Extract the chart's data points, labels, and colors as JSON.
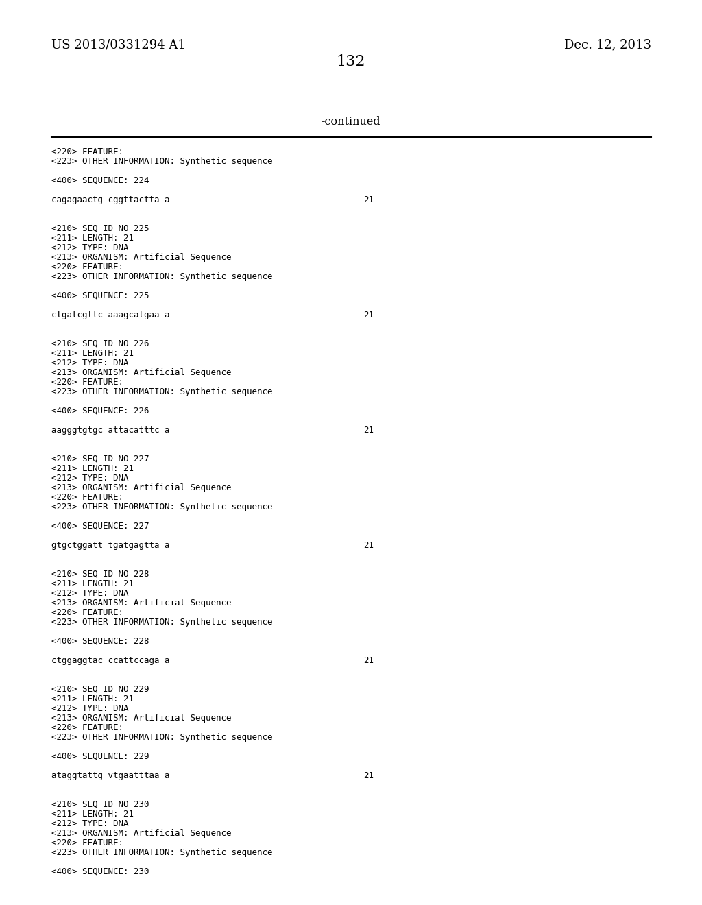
{
  "bg_color": "#ffffff",
  "header_left": "US 2013/0331294 A1",
  "header_right": "Dec. 12, 2013",
  "page_number": "132",
  "continued_label": "-continued",
  "content": [
    {
      "type": "text",
      "text": "<220> FEATURE:"
    },
    {
      "type": "text",
      "text": "<223> OTHER INFORMATION: Synthetic sequence"
    },
    {
      "type": "blank"
    },
    {
      "type": "text",
      "text": "<400> SEQUENCE: 224"
    },
    {
      "type": "blank"
    },
    {
      "type": "seq",
      "text": "cagagaactg cggttactta a",
      "num": "21"
    },
    {
      "type": "blank"
    },
    {
      "type": "blank"
    },
    {
      "type": "text",
      "text": "<210> SEQ ID NO 225"
    },
    {
      "type": "text",
      "text": "<211> LENGTH: 21"
    },
    {
      "type": "text",
      "text": "<212> TYPE: DNA"
    },
    {
      "type": "text",
      "text": "<213> ORGANISM: Artificial Sequence"
    },
    {
      "type": "text",
      "text": "<220> FEATURE:"
    },
    {
      "type": "text",
      "text": "<223> OTHER INFORMATION: Synthetic sequence"
    },
    {
      "type": "blank"
    },
    {
      "type": "text",
      "text": "<400> SEQUENCE: 225"
    },
    {
      "type": "blank"
    },
    {
      "type": "seq",
      "text": "ctgatcgttc aaagcatgaa a",
      "num": "21"
    },
    {
      "type": "blank"
    },
    {
      "type": "blank"
    },
    {
      "type": "text",
      "text": "<210> SEQ ID NO 226"
    },
    {
      "type": "text",
      "text": "<211> LENGTH: 21"
    },
    {
      "type": "text",
      "text": "<212> TYPE: DNA"
    },
    {
      "type": "text",
      "text": "<213> ORGANISM: Artificial Sequence"
    },
    {
      "type": "text",
      "text": "<220> FEATURE:"
    },
    {
      "type": "text",
      "text": "<223> OTHER INFORMATION: Synthetic sequence"
    },
    {
      "type": "blank"
    },
    {
      "type": "text",
      "text": "<400> SEQUENCE: 226"
    },
    {
      "type": "blank"
    },
    {
      "type": "seq",
      "text": "aagggtgtgc attacatttc a",
      "num": "21"
    },
    {
      "type": "blank"
    },
    {
      "type": "blank"
    },
    {
      "type": "text",
      "text": "<210> SEQ ID NO 227"
    },
    {
      "type": "text",
      "text": "<211> LENGTH: 21"
    },
    {
      "type": "text",
      "text": "<212> TYPE: DNA"
    },
    {
      "type": "text",
      "text": "<213> ORGANISM: Artificial Sequence"
    },
    {
      "type": "text",
      "text": "<220> FEATURE:"
    },
    {
      "type": "text",
      "text": "<223> OTHER INFORMATION: Synthetic sequence"
    },
    {
      "type": "blank"
    },
    {
      "type": "text",
      "text": "<400> SEQUENCE: 227"
    },
    {
      "type": "blank"
    },
    {
      "type": "seq",
      "text": "gtgctggatt tgatgagtta a",
      "num": "21"
    },
    {
      "type": "blank"
    },
    {
      "type": "blank"
    },
    {
      "type": "text",
      "text": "<210> SEQ ID NO 228"
    },
    {
      "type": "text",
      "text": "<211> LENGTH: 21"
    },
    {
      "type": "text",
      "text": "<212> TYPE: DNA"
    },
    {
      "type": "text",
      "text": "<213> ORGANISM: Artificial Sequence"
    },
    {
      "type": "text",
      "text": "<220> FEATURE:"
    },
    {
      "type": "text",
      "text": "<223> OTHER INFORMATION: Synthetic sequence"
    },
    {
      "type": "blank"
    },
    {
      "type": "text",
      "text": "<400> SEQUENCE: 228"
    },
    {
      "type": "blank"
    },
    {
      "type": "seq",
      "text": "ctggaggtac ccattccaga a",
      "num": "21"
    },
    {
      "type": "blank"
    },
    {
      "type": "blank"
    },
    {
      "type": "text",
      "text": "<210> SEQ ID NO 229"
    },
    {
      "type": "text",
      "text": "<211> LENGTH: 21"
    },
    {
      "type": "text",
      "text": "<212> TYPE: DNA"
    },
    {
      "type": "text",
      "text": "<213> ORGANISM: Artificial Sequence"
    },
    {
      "type": "text",
      "text": "<220> FEATURE:"
    },
    {
      "type": "text",
      "text": "<223> OTHER INFORMATION: Synthetic sequence"
    },
    {
      "type": "blank"
    },
    {
      "type": "text",
      "text": "<400> SEQUENCE: 229"
    },
    {
      "type": "blank"
    },
    {
      "type": "seq",
      "text": "ataggtattg vtgaatttaa a",
      "num": "21"
    },
    {
      "type": "blank"
    },
    {
      "type": "blank"
    },
    {
      "type": "text",
      "text": "<210> SEQ ID NO 230"
    },
    {
      "type": "text",
      "text": "<211> LENGTH: 21"
    },
    {
      "type": "text",
      "text": "<212> TYPE: DNA"
    },
    {
      "type": "text",
      "text": "<213> ORGANISM: Artificial Sequence"
    },
    {
      "type": "text",
      "text": "<220> FEATURE:"
    },
    {
      "type": "text",
      "text": "<223> OTHER INFORMATION: Synthetic sequence"
    },
    {
      "type": "blank"
    },
    {
      "type": "text",
      "text": "<400> SEQUENCE: 230"
    }
  ],
  "font_size_header": 13,
  "font_size_page": 16,
  "font_size_continued": 11.5,
  "font_size_content": 9.0,
  "text_color": "#000000",
  "mono_font": "monospace",
  "serif_font": "serif"
}
